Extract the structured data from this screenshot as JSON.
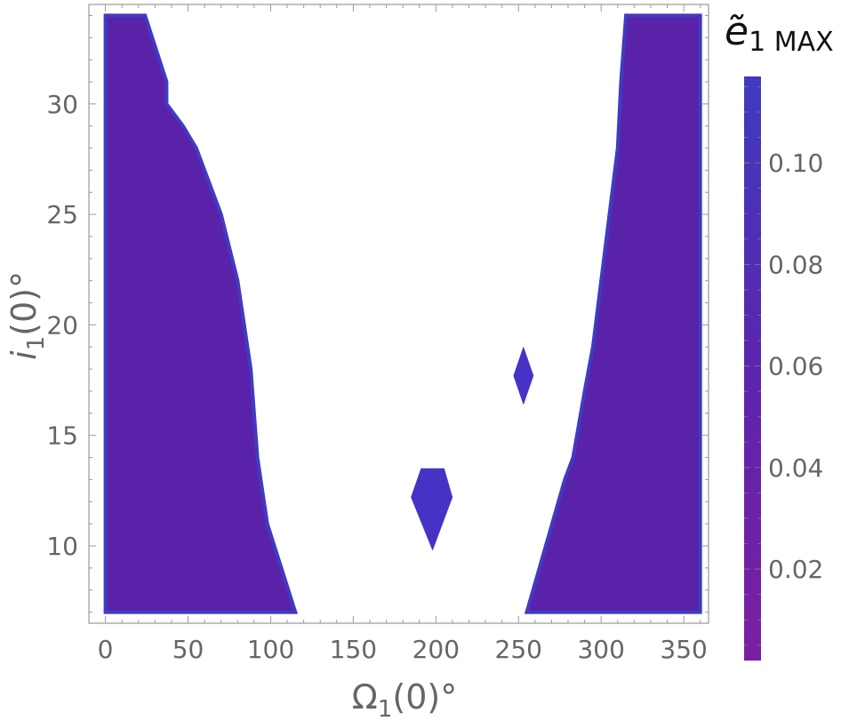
{
  "chart_data": {
    "type": "heatmap",
    "xlabel": {
      "symbol": "Ω",
      "sub": "1",
      "rest": "(0)°"
    },
    "ylabel": {
      "symbol": "i",
      "sub": "1",
      "rest": "(0)°"
    },
    "xlim": [
      -10,
      365
    ],
    "ylim": [
      6.5,
      34.5
    ],
    "xticks": [
      "0",
      "50",
      "100",
      "150",
      "200",
      "250",
      "300",
      "350"
    ],
    "xtick_values": [
      0,
      50,
      100,
      150,
      200,
      250,
      300,
      350
    ],
    "yticks": [
      "10",
      "15",
      "20",
      "25",
      "30"
    ],
    "ytick_values": [
      10,
      15,
      20,
      25,
      30
    ],
    "colorbar": {
      "title": {
        "symbol": "ẽ",
        "sub": "1 MAX"
      },
      "range": [
        0.002,
        0.117
      ],
      "tick_labels": [
        "0.02",
        "0.04",
        "0.06",
        "0.08",
        "0.10"
      ],
      "tick_values": [
        0.02,
        0.04,
        0.06,
        0.08,
        0.1
      ],
      "colors": [
        "#7b1fa2",
        "#5c24ad",
        "#3f3bbf"
      ]
    },
    "regions": [
      {
        "name": "left-region",
        "color": "#5a22a8",
        "edge_color": "#3f3bc4",
        "boundary": [
          [
            0,
            7
          ],
          [
            0,
            34
          ],
          [
            24,
            34
          ],
          [
            37,
            31
          ],
          [
            37,
            30
          ],
          [
            47,
            29
          ],
          [
            55,
            28
          ],
          [
            70,
            25
          ],
          [
            80,
            22
          ],
          [
            86,
            19
          ],
          [
            88,
            18
          ],
          [
            92,
            14
          ],
          [
            96,
            12
          ],
          [
            98,
            11
          ],
          [
            115,
            7
          ]
        ]
      },
      {
        "name": "right-region",
        "color": "#5a22a8",
        "edge_color": "#3f3bc4",
        "boundary": [
          [
            255,
            7
          ],
          [
            278,
            13
          ],
          [
            283,
            14
          ],
          [
            290,
            17
          ],
          [
            295,
            19
          ],
          [
            300,
            22
          ],
          [
            305,
            25
          ],
          [
            310,
            28
          ],
          [
            312,
            31
          ],
          [
            315,
            34
          ],
          [
            360,
            34
          ],
          [
            360,
            7
          ]
        ]
      },
      {
        "name": "island-200",
        "color": "#4633c6",
        "boundary": [
          [
            191,
            13.5
          ],
          [
            205,
            13.5
          ],
          [
            210,
            12.2
          ],
          [
            198,
            9.8
          ],
          [
            185,
            12.2
          ]
        ]
      },
      {
        "name": "island-255",
        "color": "#4633c6",
        "boundary": [
          [
            253,
            19
          ],
          [
            259,
            17.7
          ],
          [
            253,
            16.4
          ],
          [
            247,
            17.7
          ]
        ]
      }
    ]
  }
}
